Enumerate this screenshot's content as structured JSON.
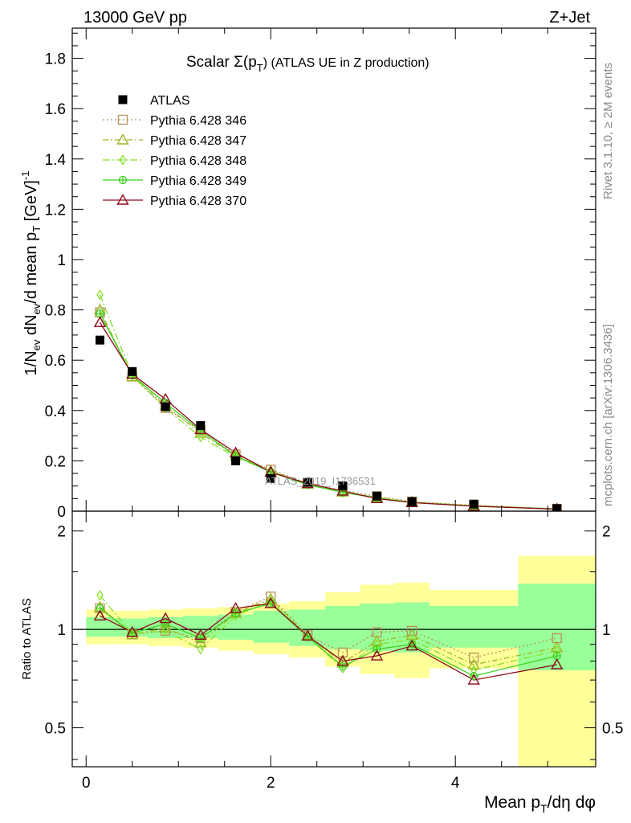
{
  "header": {
    "left": "13000 GeV pp",
    "right": "Z+Jet"
  },
  "side": {
    "top": "Rivet 3.1.10, ≥ 2M events",
    "bottom": "mcplots.cern.ch [arXiv:1306.3436]"
  },
  "watermark": "ATLAS_2019_I1736531",
  "chart_data": [
    {
      "type": "scatter",
      "panel": "main",
      "title": "Scalar Σ(pT) (ATLAS UE in Z production)",
      "title_prefix": "Scalar Σ(p",
      "title_sub": "T",
      "title_suffix": ") (ATLAS UE in Z production)",
      "ylabel": "1/Nev dNev/d mean pT [GeV]^-1",
      "ylabel_parts": [
        "1/N",
        "ev",
        " dN",
        "ev",
        "/d mean p",
        "T",
        " [GeV]",
        "-1"
      ],
      "ylim": [
        0,
        1.92
      ],
      "xlim": [
        -0.15,
        5.52
      ],
      "yticks": [
        0,
        0.2,
        0.4,
        0.6,
        0.8,
        1,
        1.2,
        1.4,
        1.6,
        1.8
      ],
      "ytick_labels": [
        "0",
        "0.2",
        "0.4",
        "0.6",
        "0.8",
        "1",
        "1.2",
        "1.4",
        "1.6",
        "1.8"
      ],
      "x": [
        0.15,
        0.5,
        0.86,
        1.24,
        1.62,
        2.0,
        2.4,
        2.78,
        3.15,
        3.53,
        4.2,
        5.1
      ],
      "legend_position": "top-left",
      "series": [
        {
          "name": "ATLAS",
          "color": "#000000",
          "marker": "square",
          "values": [
            0.68,
            0.555,
            0.415,
            0.34,
            0.2,
            0.13,
            0.115,
            0.1,
            0.06,
            0.038,
            0.028,
            0.01
          ]
        },
        {
          "name": "Pythia 6.428 346",
          "color": "#b8915a",
          "marker": "open-square",
          "dash": "2,3",
          "values": [
            0.79,
            0.535,
            0.41,
            0.32,
            0.225,
            0.165,
            0.11,
            0.082,
            0.059,
            0.038,
            0.023,
            0.0095
          ]
        },
        {
          "name": "Pythia 6.428 347",
          "color": "#9cb827",
          "marker": "open-triangle",
          "dash": "7,3,2,3",
          "values": [
            0.8,
            0.535,
            0.42,
            0.31,
            0.22,
            0.16,
            0.108,
            0.076,
            0.055,
            0.036,
            0.022,
            0.0088
          ]
        },
        {
          "name": "Pythia 6.428 348",
          "color": "#88e02a",
          "marker": "open-diamond",
          "dash": "9,3,2,3",
          "values": [
            0.86,
            0.54,
            0.41,
            0.295,
            0.215,
            0.158,
            0.106,
            0.074,
            0.054,
            0.035,
            0.021,
            0.0085
          ]
        },
        {
          "name": "Pythia 6.428 349",
          "color": "#3ed11f",
          "marker": "open-circle-cross",
          "dash": "",
          "values": [
            0.785,
            0.54,
            0.43,
            0.32,
            0.22,
            0.155,
            0.105,
            0.075,
            0.052,
            0.034,
            0.02,
            0.0083
          ]
        },
        {
          "name": "Pythia 6.428 370",
          "color": "#8b0a1a",
          "marker": "open-triangle",
          "dash": "",
          "values": [
            0.75,
            0.545,
            0.445,
            0.325,
            0.232,
            0.155,
            0.11,
            0.08,
            0.05,
            0.034,
            0.02,
            0.0078
          ]
        }
      ]
    },
    {
      "type": "scatter",
      "panel": "ratio",
      "ylabel": "Ratio to ATLAS",
      "xlabel": "Mean pT/dη dφ",
      "xlabel_parts": [
        "Mean p",
        "T",
        "/dη dφ"
      ],
      "ylog": true,
      "ylim": [
        0.38,
        2.3
      ],
      "xlim": [
        -0.15,
        5.52
      ],
      "yticks": [
        0.5,
        1,
        2
      ],
      "ytick_labels": [
        "0.5",
        "1",
        "2"
      ],
      "xticks": [
        0,
        2,
        4
      ],
      "xtick_labels": [
        "0",
        "2",
        "4"
      ],
      "bands": {
        "edges": [
          0,
          0.3,
          0.67,
          1.05,
          1.43,
          1.81,
          2.2,
          2.59,
          2.97,
          3.34,
          3.72,
          4.68,
          5.52
        ],
        "yellow": [
          [
            0.9,
            1.15
          ],
          [
            0.9,
            1.14
          ],
          [
            0.89,
            1.15
          ],
          [
            0.88,
            1.16
          ],
          [
            0.86,
            1.17
          ],
          [
            0.84,
            1.2
          ],
          [
            0.82,
            1.22
          ],
          [
            0.77,
            1.3
          ],
          [
            0.73,
            1.37
          ],
          [
            0.71,
            1.39
          ],
          [
            0.76,
            1.32
          ],
          [
            0.36,
            1.68
          ]
        ],
        "green": [
          [
            0.95,
            1.09
          ],
          [
            0.95,
            1.08
          ],
          [
            0.94,
            1.09
          ],
          [
            0.94,
            1.1
          ],
          [
            0.93,
            1.11
          ],
          [
            0.91,
            1.14
          ],
          [
            0.89,
            1.15
          ],
          [
            0.87,
            1.18
          ],
          [
            0.86,
            1.2
          ],
          [
            0.85,
            1.21
          ],
          [
            0.88,
            1.18
          ],
          [
            0.75,
            1.38
          ]
        ]
      },
      "series": [
        {
          "name": "Pythia 6.428 346",
          "values": [
            1.16,
            0.965,
            0.99,
            0.94,
            1.13,
            1.26,
            0.96,
            0.85,
            0.98,
            0.99,
            0.82,
            0.94
          ]
        },
        {
          "name": "Pythia 6.428 347",
          "values": [
            1.17,
            0.965,
            1.01,
            0.91,
            1.12,
            1.24,
            0.955,
            0.79,
            0.92,
            0.96,
            0.78,
            0.88
          ]
        },
        {
          "name": "Pythia 6.428 348",
          "values": [
            1.27,
            0.97,
            0.99,
            0.87,
            1.1,
            1.22,
            0.95,
            0.76,
            0.9,
            0.93,
            0.75,
            0.86
          ]
        },
        {
          "name": "Pythia 6.428 349",
          "values": [
            1.16,
            0.975,
            1.04,
            0.94,
            1.12,
            1.2,
            0.95,
            0.77,
            0.87,
            0.9,
            0.72,
            0.83
          ]
        },
        {
          "name": "Pythia 6.428 370",
          "values": [
            1.1,
            0.98,
            1.08,
            0.96,
            1.16,
            1.2,
            0.955,
            0.8,
            0.83,
            0.89,
            0.7,
            0.78
          ]
        }
      ]
    }
  ]
}
